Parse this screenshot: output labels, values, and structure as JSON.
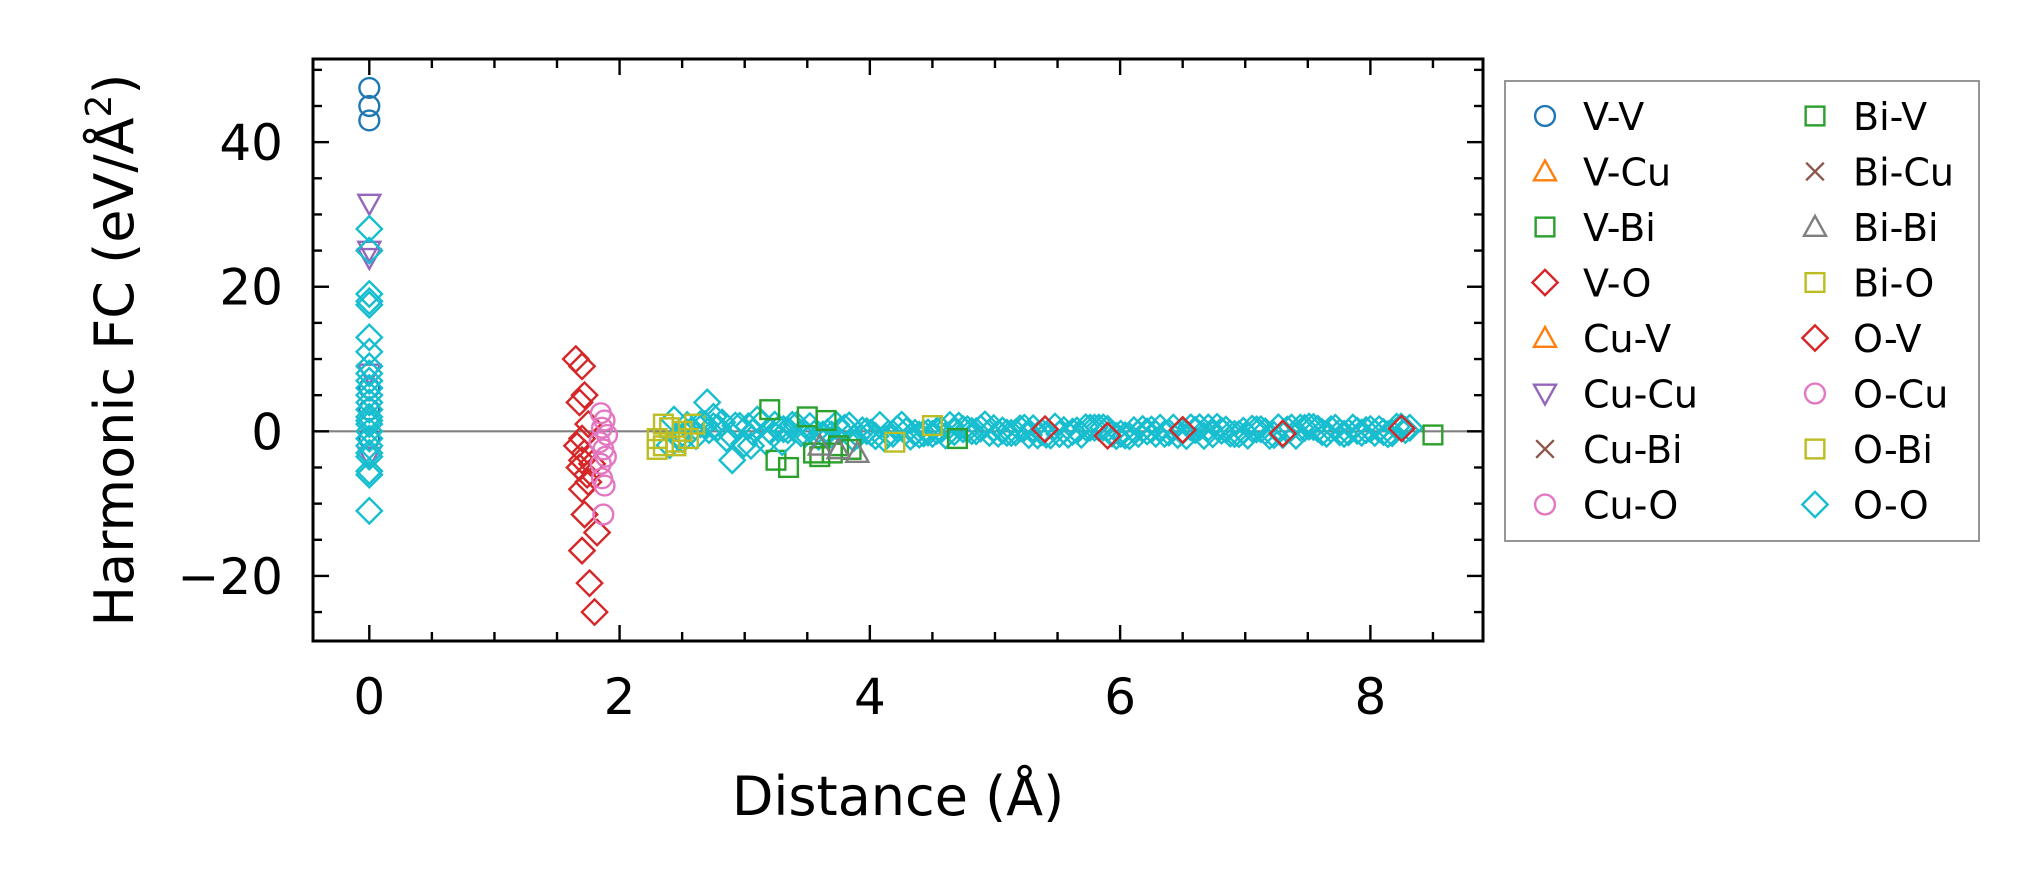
{
  "chart_data": {
    "type": "scatter",
    "title": "",
    "xlabel": "Distance (Å)",
    "ylabel_parts": [
      "Harmonic FC (eV/Å",
      "2",
      ")"
    ],
    "xlim": [
      -0.45,
      8.9
    ],
    "ylim": [
      -29,
      51.5
    ],
    "x_ticks": [
      0,
      2,
      4,
      6,
      8
    ],
    "x_tick_labels": [
      "0",
      "2",
      "4",
      "6",
      "8"
    ],
    "y_ticks": [
      -20,
      0,
      20,
      40
    ],
    "y_tick_labels": [
      "−20",
      "0",
      "20",
      "40"
    ],
    "x_minor_step": 0.5,
    "y_minor_step": 5,
    "reference_line_y": 0,
    "legend_location": "outside right",
    "series": [
      {
        "name": "V-V",
        "marker": "circle",
        "color": "#1f77b4",
        "x": [
          0,
          0,
          0,
          0,
          0,
          0
        ],
        "y": [
          47.5,
          45,
          43,
          6,
          3,
          -1
        ]
      },
      {
        "name": "V-Cu",
        "marker": "triangle-up",
        "color": "#ff7f0e",
        "x": [],
        "y": []
      },
      {
        "name": "V-Bi",
        "marker": "square",
        "color": "#2ca02c",
        "x": [],
        "y": []
      },
      {
        "name": "V-O",
        "marker": "diamond",
        "color": "#d62728",
        "x": [
          1.65,
          1.7,
          1.72,
          1.68,
          1.75,
          1.7,
          1.66,
          1.72,
          1.7,
          1.78,
          1.68,
          1.74,
          1.7,
          1.72,
          1.7,
          1.76,
          1.8,
          1.82,
          1.75
        ],
        "y": [
          10,
          9,
          5,
          4,
          1,
          -1,
          -2,
          -3,
          -4,
          -4.5,
          -5,
          -6,
          -8,
          -11.5,
          -16.5,
          -21,
          -25,
          -14,
          -7
        ]
      },
      {
        "name": "Cu-V",
        "marker": "triangle-up",
        "color": "#ff7f0e",
        "x": [],
        "y": []
      },
      {
        "name": "Cu-Cu",
        "marker": "triangle-down",
        "color": "#9467bd",
        "x": [
          0,
          0,
          0,
          0,
          0
        ],
        "y": [
          31.5,
          25,
          24,
          8,
          -3.5
        ]
      },
      {
        "name": "Cu-Bi",
        "marker": "x",
        "color": "#8c564b",
        "x": [],
        "y": []
      },
      {
        "name": "Cu-O",
        "marker": "circle",
        "color": "#e377c2",
        "x": [
          1.85,
          1.88,
          1.86,
          1.9,
          1.84,
          1.87,
          1.89,
          1.85,
          1.86,
          1.88,
          1.87
        ],
        "y": [
          2.5,
          1.5,
          0.5,
          -0.5,
          -1.5,
          -2.5,
          -3.5,
          -4.5,
          -6.5,
          -7.5,
          -11.5
        ]
      },
      {
        "name": "Bi-V",
        "marker": "square",
        "color": "#2ca02c",
        "x": [
          3.2,
          3.25,
          3.35,
          3.5,
          3.55,
          3.6,
          3.65,
          3.7,
          3.75,
          3.85,
          4.7,
          8.5
        ],
        "y": [
          3,
          -4,
          -5,
          2,
          -3,
          -3.5,
          1.5,
          -3,
          -2,
          -2.5,
          -1,
          -0.5
        ]
      },
      {
        "name": "Bi-Cu",
        "marker": "x",
        "color": "#8c564b",
        "x": [],
        "y": []
      },
      {
        "name": "Bi-Bi",
        "marker": "triangle-up",
        "color": "#7f7f7f",
        "x": [
          3.6,
          3.75,
          3.9
        ],
        "y": [
          -2,
          -2.5,
          -3
        ]
      },
      {
        "name": "Bi-O",
        "marker": "square",
        "color": "#bcbd22",
        "x": [
          2.3,
          2.35,
          2.4,
          2.45,
          2.3,
          2.35,
          2.45,
          2.5,
          2.55,
          2.6,
          4.2,
          4.5
        ],
        "y": [
          -1,
          -2,
          0.5,
          -1.5,
          -2.5,
          1,
          -2,
          0,
          -1,
          1,
          -1.5,
          0.8
        ]
      },
      {
        "name": "O-V",
        "marker": "diamond",
        "color": "#d62728",
        "x": [
          5.4,
          5.9,
          6.5,
          7.3,
          8.25
        ],
        "y": [
          0.3,
          -0.6,
          0.2,
          -0.3,
          0.4
        ]
      },
      {
        "name": "O-Cu",
        "marker": "circle",
        "color": "#e377c2",
        "x": [],
        "y": []
      },
      {
        "name": "O-Bi",
        "marker": "square",
        "color": "#bcbd22",
        "x": [],
        "y": []
      },
      {
        "name": "O-O",
        "marker": "diamond",
        "color": "#17becf",
        "x": [
          0,
          0,
          0,
          0,
          0,
          0,
          0,
          0,
          0,
          0,
          0,
          0,
          0,
          0,
          0,
          0,
          0,
          0,
          0,
          0,
          0,
          0,
          0,
          0,
          0,
          2.7,
          2.75,
          2.9,
          3.05,
          3.3
        ],
        "y": [
          28,
          25,
          19,
          18,
          17.5,
          13,
          11,
          9,
          8,
          7,
          6,
          5,
          4,
          3,
          2,
          1.5,
          1,
          0,
          -1,
          -2,
          -3,
          -3.5,
          -5.5,
          -6,
          -11,
          4,
          2,
          -4,
          -2,
          -1.5
        ]
      }
    ],
    "dense_band": {
      "color": "#17becf",
      "x_range": [
        2.4,
        8.35
      ],
      "y_amplitude": 1.2,
      "note": "dense cloud of pair force constants near zero"
    }
  }
}
